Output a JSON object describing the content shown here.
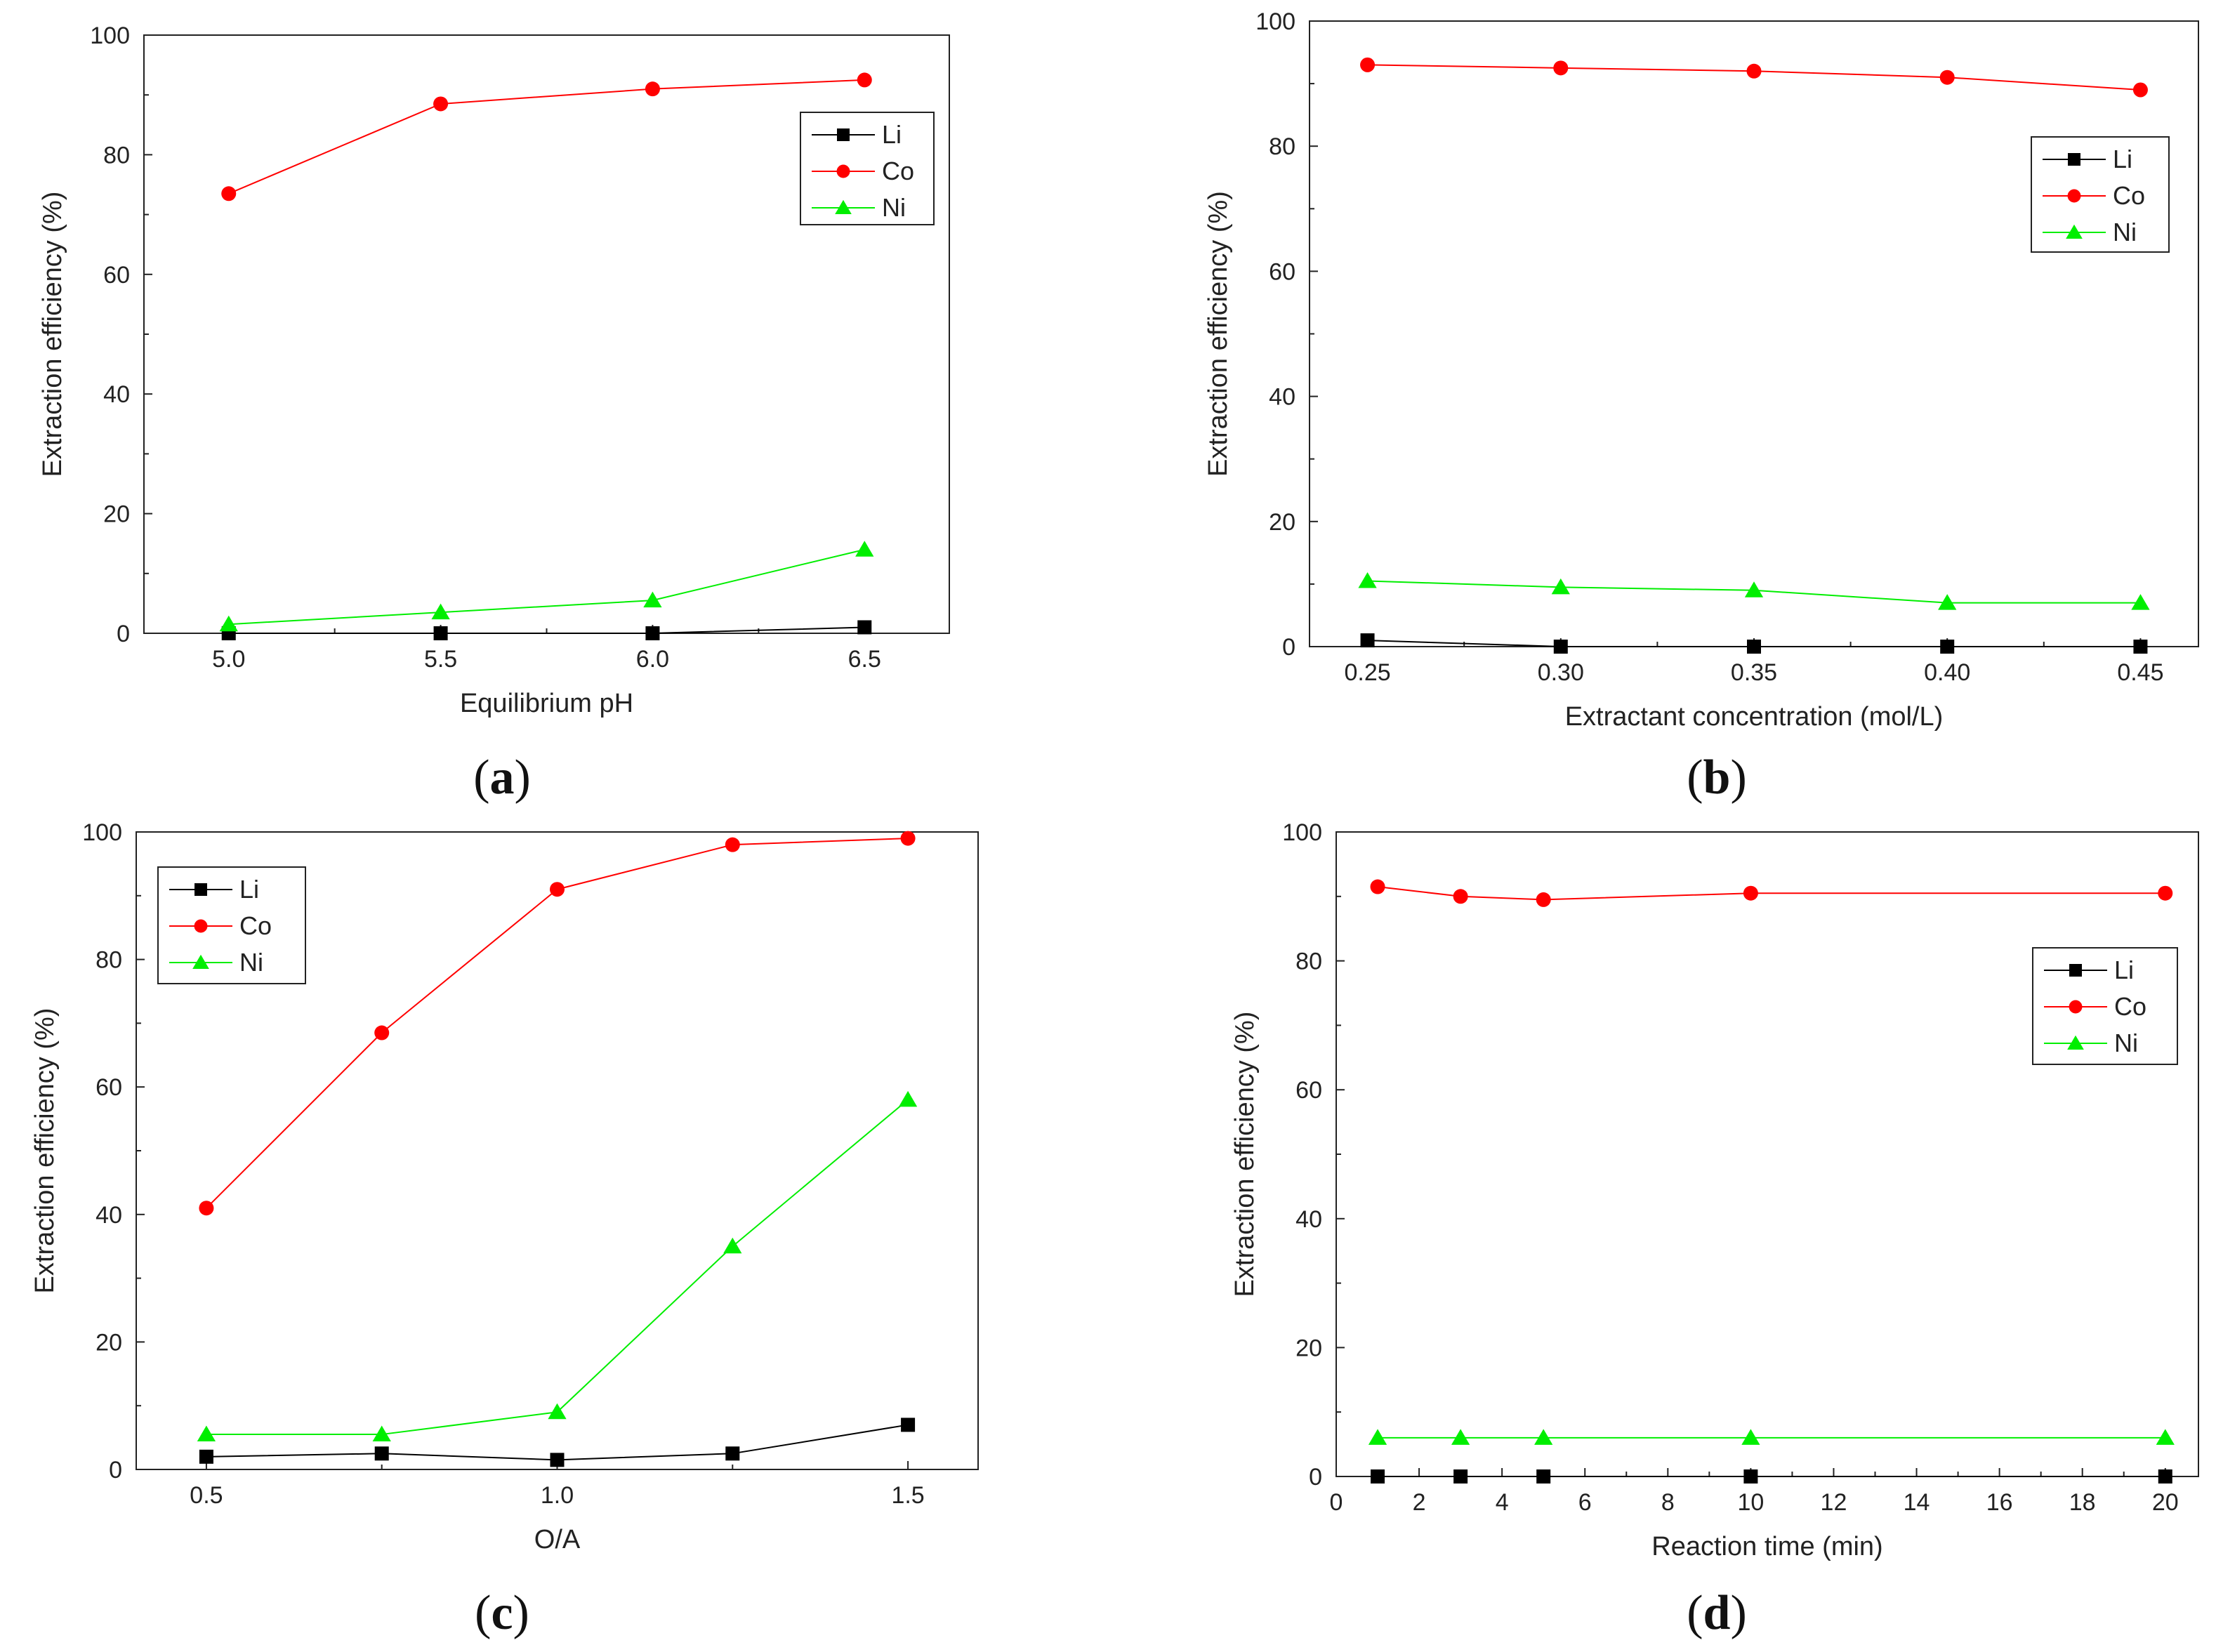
{
  "chart_data": [
    {
      "type": "line",
      "panel": "(a)",
      "caption_letter": "a",
      "xlabel": "Equilibrium pH",
      "ylabel": "Extraction efficiency (%)",
      "xlim": [
        4.8,
        6.7
      ],
      "ylim": [
        0,
        100
      ],
      "xticks": [
        5.0,
        5.5,
        6.0,
        6.5
      ],
      "xtick_labels": [
        "5.0",
        "5.5",
        "6.0",
        "6.5"
      ],
      "yticks": [
        0,
        20,
        40,
        60,
        80,
        100
      ],
      "ytick_labels": [
        "0",
        "20",
        "40",
        "60",
        "80",
        "100"
      ],
      "legend_position": "top-right",
      "series": [
        {
          "name": "Li",
          "color": "#000000",
          "marker": "square",
          "x": [
            5.0,
            5.5,
            6.0,
            6.5
          ],
          "values": [
            0,
            0,
            0,
            1
          ]
        },
        {
          "name": "Co",
          "color": "#ff0000",
          "marker": "circle",
          "x": [
            5.0,
            5.5,
            6.0,
            6.5
          ],
          "values": [
            73.5,
            88.5,
            91,
            92.5
          ]
        },
        {
          "name": "Ni",
          "color": "#00ee00",
          "marker": "triangle",
          "x": [
            5.0,
            5.5,
            6.0,
            6.5
          ],
          "values": [
            1.5,
            3.5,
            5.5,
            14
          ]
        }
      ]
    },
    {
      "type": "line",
      "panel": "(b)",
      "caption_letter": "b",
      "xlabel": "Extractant concentration (mol/L)",
      "ylabel": "Extraction efficiency (%)",
      "xlim": [
        0.235,
        0.465
      ],
      "ylim": [
        0,
        100
      ],
      "xticks": [
        0.25,
        0.3,
        0.35,
        0.4,
        0.45
      ],
      "xtick_labels": [
        "0.25",
        "0.30",
        "0.35",
        "0.40",
        "0.45"
      ],
      "yticks": [
        0,
        20,
        40,
        60,
        80,
        100
      ],
      "ytick_labels": [
        "0",
        "20",
        "40",
        "60",
        "80",
        "100"
      ],
      "legend_position": "right",
      "series": [
        {
          "name": "Li",
          "color": "#000000",
          "marker": "square",
          "x": [
            0.25,
            0.3,
            0.35,
            0.4,
            0.45
          ],
          "values": [
            1,
            0,
            0,
            0,
            0
          ]
        },
        {
          "name": "Co",
          "color": "#ff0000",
          "marker": "circle",
          "x": [
            0.25,
            0.3,
            0.35,
            0.4,
            0.45
          ],
          "values": [
            93,
            92.5,
            92,
            91,
            89
          ]
        },
        {
          "name": "Ni",
          "color": "#00ee00",
          "marker": "triangle",
          "x": [
            0.25,
            0.3,
            0.35,
            0.4,
            0.45
          ],
          "values": [
            10.5,
            9.5,
            9,
            7,
            7
          ]
        }
      ]
    },
    {
      "type": "line",
      "panel": "(c)",
      "caption_letter": "c",
      "xlabel": "O/A",
      "ylabel": "Extraction efficiency (%)",
      "xlim": [
        0.4,
        1.6
      ],
      "ylim": [
        0,
        100
      ],
      "xticks": [
        0.5,
        1.0,
        1.5
      ],
      "xtick_labels": [
        "0.5",
        "1.0",
        "1.5"
      ],
      "yticks": [
        0,
        20,
        40,
        60,
        80,
        100
      ],
      "ytick_labels": [
        "0",
        "20",
        "40",
        "60",
        "80",
        "100"
      ],
      "legend_position": "top-left",
      "series": [
        {
          "name": "Li",
          "color": "#000000",
          "marker": "square",
          "x": [
            0.5,
            0.75,
            1.0,
            1.25,
            1.5
          ],
          "values": [
            2,
            2.5,
            1.5,
            2.5,
            7
          ]
        },
        {
          "name": "Co",
          "color": "#ff0000",
          "marker": "circle",
          "x": [
            0.5,
            0.75,
            1.0,
            1.25,
            1.5
          ],
          "values": [
            41,
            68.5,
            91,
            98,
            99
          ]
        },
        {
          "name": "Ni",
          "color": "#00ee00",
          "marker": "triangle",
          "x": [
            0.5,
            0.75,
            1.0,
            1.25,
            1.5
          ],
          "values": [
            5.5,
            5.5,
            9,
            35,
            58
          ]
        }
      ]
    },
    {
      "type": "line",
      "panel": "(d)",
      "caption_letter": "d",
      "xlabel": "Reaction time (min)",
      "ylabel": "Extraction efficiency (%)",
      "xlim": [
        0,
        20.8
      ],
      "ylim": [
        0,
        100
      ],
      "xticks": [
        0,
        2,
        4,
        6,
        8,
        10,
        12,
        14,
        16,
        18,
        20
      ],
      "xtick_labels": [
        "0",
        "2",
        "4",
        "6",
        "8",
        "10",
        "12",
        "14",
        "16",
        "18",
        "20"
      ],
      "yticks": [
        0,
        20,
        40,
        60,
        80,
        100
      ],
      "ytick_labels": [
        "0",
        "20",
        "40",
        "60",
        "80",
        "100"
      ],
      "legend_position": "right",
      "series": [
        {
          "name": "Li",
          "color": "#000000",
          "marker": "square",
          "x": [
            1,
            3,
            5,
            10,
            20
          ],
          "values": [
            0,
            0,
            0,
            0,
            0
          ]
        },
        {
          "name": "Co",
          "color": "#ff0000",
          "marker": "circle",
          "x": [
            1,
            3,
            5,
            10,
            20
          ],
          "values": [
            91.5,
            90,
            89.5,
            90.5,
            90.5
          ]
        },
        {
          "name": "Ni",
          "color": "#00ee00",
          "marker": "triangle",
          "x": [
            1,
            3,
            5,
            10,
            20
          ],
          "values": [
            6,
            6,
            6,
            6,
            6
          ]
        }
      ]
    }
  ]
}
